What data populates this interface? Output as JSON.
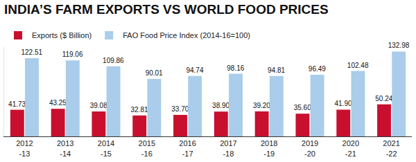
{
  "chart_data": {
    "type": "bar",
    "title": "INDIA’S FARM EXPORTS VS WORLD FOOD PRICES",
    "categories": [
      "2012\n-13",
      "2013\n-14",
      "2014\n-15",
      "2015\n-16",
      "2016\n-17",
      "2017\n-18",
      "2018\n-19",
      "2019\n-20",
      "2020\n-21",
      "2021\n-22"
    ],
    "series": [
      {
        "name": "Exports ($ Billion)",
        "color": "#c8102e",
        "values": [
          41.73,
          43.25,
          39.08,
          32.81,
          33.7,
          38.9,
          39.2,
          35.6,
          41.9,
          50.24
        ],
        "value_labels": [
          "41.73",
          "43.25",
          "39.08",
          "32.81",
          "33.70",
          "38.90",
          "39.20",
          "35.60",
          "41.90",
          "50.24"
        ]
      },
      {
        "name": "FAO Food Price Index (2014-16=100)",
        "color": "#a9cdea",
        "values": [
          122.51,
          119.06,
          109.86,
          90.01,
          94.74,
          98.16,
          94.81,
          96.49,
          102.48,
          132.98
        ],
        "value_labels": [
          "122.51",
          "119.06",
          "109.86",
          "90.01",
          "94.74",
          "98.16",
          "94.81",
          "96.49",
          "102.48",
          "132.98"
        ]
      }
    ],
    "ylim": [
      0,
      140
    ],
    "tick_labels": "x",
    "data_labels": true,
    "legend": "top-left",
    "grid": false
  }
}
